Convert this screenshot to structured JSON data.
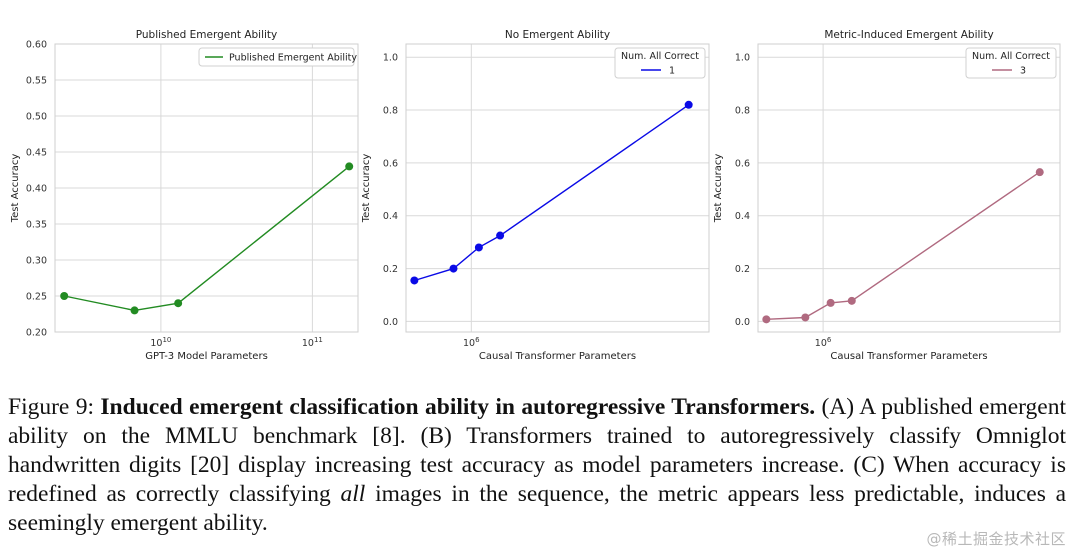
{
  "chart_data": [
    {
      "type": "line",
      "title": "Published Emergent Ability",
      "xlabel": "GPT-3 Model Parameters",
      "ylabel": "Test Accuracy",
      "xscale": "log",
      "xlim": [
        2000000000.0,
        200000000000.0
      ],
      "ylim": [
        0.2,
        0.6
      ],
      "yticks": [
        "0.20",
        "0.25",
        "0.30",
        "0.35",
        "0.40",
        "0.45",
        "0.50",
        "0.55",
        "0.60"
      ],
      "ytick_values": [
        0.2,
        0.25,
        0.3,
        0.35,
        0.4,
        0.45,
        0.5,
        0.55,
        0.6
      ],
      "xtick_values": [
        10000000000.0,
        100000000000.0
      ],
      "xtick_bases": [
        "10",
        "10"
      ],
      "xtick_exps": [
        "10",
        "11"
      ],
      "grid": true,
      "legend": {
        "title": "",
        "placement": "top-right",
        "entries": [
          "Published Emergent Ability"
        ]
      },
      "color": "#228b22",
      "series": [
        {
          "name": "Published Emergent Ability",
          "x": [
            2300000000.0,
            6700000000.0,
            13000000000.0,
            175000000000.0
          ],
          "y": [
            0.25,
            0.23,
            0.24,
            0.43
          ]
        }
      ]
    },
    {
      "type": "line",
      "title": "No Emergent Ability",
      "xlabel": "Causal Transformer Parameters",
      "ylabel": "Test Accuracy",
      "xscale": "log",
      "xlim": [
        300000.0,
        80000000.0
      ],
      "ylim": [
        -0.04,
        1.05
      ],
      "yticks": [
        "0.0",
        "0.2",
        "0.4",
        "0.6",
        "0.8",
        "1.0"
      ],
      "ytick_values": [
        0.0,
        0.2,
        0.4,
        0.6,
        0.8,
        1.0
      ],
      "xtick_values": [
        1000000.0
      ],
      "xtick_bases": [
        "10"
      ],
      "xtick_exps": [
        "6"
      ],
      "grid": true,
      "legend": {
        "title": "Num. All Correct",
        "placement": "top-right",
        "entries": [
          "1"
        ]
      },
      "color": "#0a0ae6",
      "series": [
        {
          "name": "1",
          "x": [
            350000.0,
            720000.0,
            1150000.0,
            1700000.0,
            55000000.0
          ],
          "y": [
            0.155,
            0.2,
            0.28,
            0.325,
            0.82
          ]
        }
      ]
    },
    {
      "type": "line",
      "title": "Metric-Induced Emergent Ability",
      "xlabel": "Causal Transformer Parameters",
      "ylabel": "Test Accuracy",
      "xscale": "log",
      "xlim": [
        300000.0,
        80000000.0
      ],
      "ylim": [
        -0.04,
        1.05
      ],
      "yticks": [
        "0.0",
        "0.2",
        "0.4",
        "0.6",
        "0.8",
        "1.0"
      ],
      "ytick_values": [
        0.0,
        0.2,
        0.4,
        0.6,
        0.8,
        1.0
      ],
      "xtick_values": [
        1000000.0
      ],
      "xtick_bases": [
        "10"
      ],
      "xtick_exps": [
        "6"
      ],
      "grid": true,
      "legend": {
        "title": "Num. All Correct",
        "placement": "top-right",
        "entries": [
          "3"
        ]
      },
      "color": "#b06a80",
      "series": [
        {
          "name": "3",
          "x": [
            350000.0,
            720000.0,
            1150000.0,
            1700000.0,
            55000000.0
          ],
          "y": [
            0.008,
            0.015,
            0.07,
            0.078,
            0.565
          ]
        }
      ]
    }
  ],
  "caption": {
    "label": "Figure 9:",
    "bold_title": "Induced emergent classification ability in autoregressive Transformers.",
    "part1": "(A) A published emergent ability on the MMLU benchmark [8]. (B) Transformers trained to autoregressively classify Omniglot handwritten digits [20] display increasing test accuracy as model parameters increase.  (C) When accuracy is redefined as correctly classifying",
    "italic": "all",
    "part2": "images in the sequence, the metric appears less predictable, induces a seemingly emergent ability."
  },
  "watermark": "@稀土掘金技术社区"
}
